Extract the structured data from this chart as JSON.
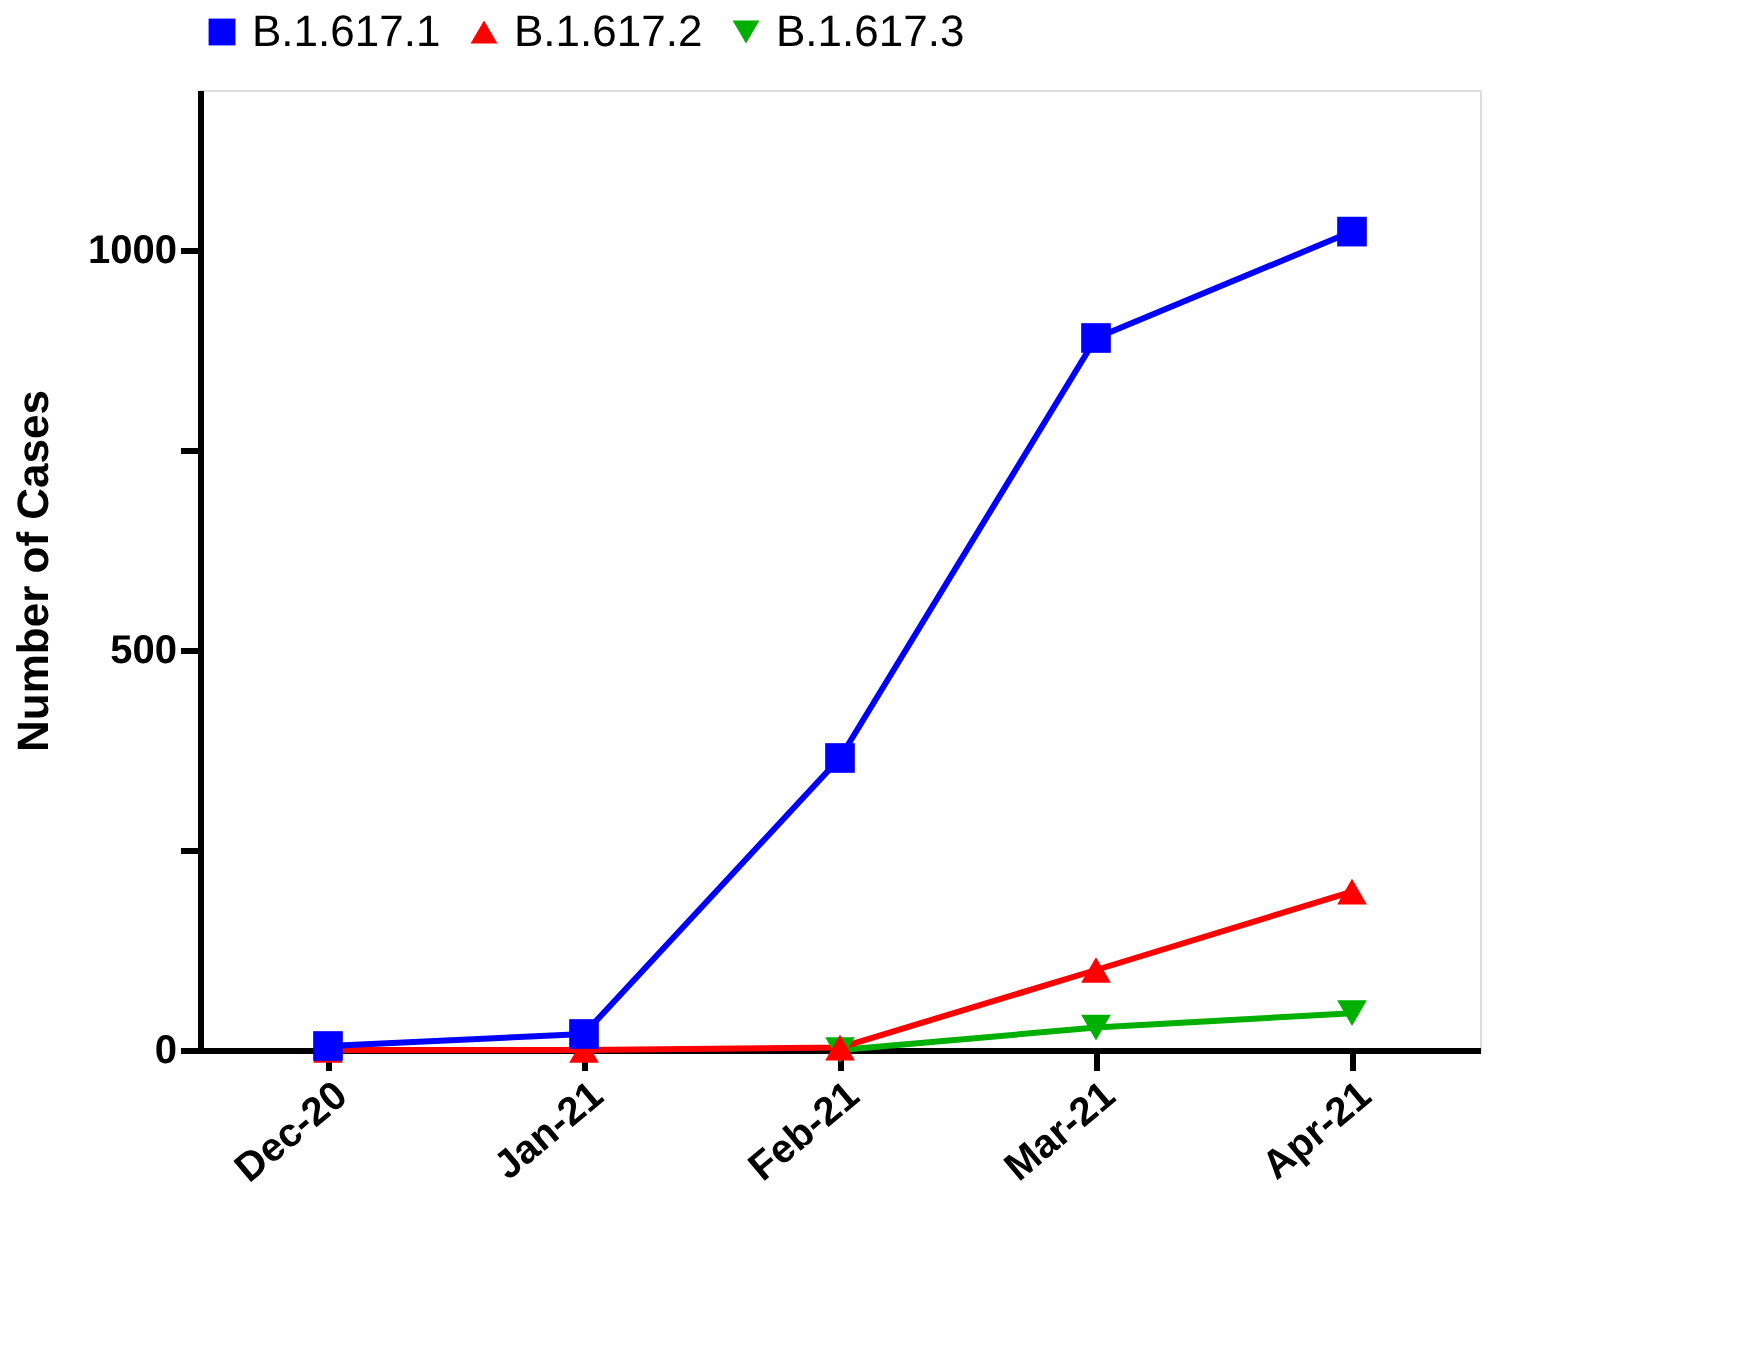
{
  "chart_data": {
    "type": "line",
    "ylabel": "Number of Cases",
    "categories": [
      "Dec-20",
      "Jan-21",
      "Feb-21",
      "Mar-21",
      "Apr-21"
    ],
    "series": [
      {
        "name": "B.1.617.1",
        "color": "#0000ff",
        "marker": "square",
        "values": [
          5,
          20,
          365,
          890,
          1023
        ]
      },
      {
        "name": "B.1.617.2",
        "color": "#ff0000",
        "marker": "triangle",
        "values": [
          0,
          0,
          3,
          100,
          198
        ]
      },
      {
        "name": "B.1.617.3",
        "color": "#00b000",
        "marker": "triangle",
        "values": [
          null,
          null,
          0,
          28,
          46
        ]
      }
    ],
    "ylim": [
      0,
      1200
    ],
    "yticks": [
      0,
      {
        "value": 250,
        "label": null
      },
      500,
      {
        "value": 750,
        "label": null
      },
      1000
    ],
    "grid": false,
    "legend": "top",
    "line_style": "solid"
  }
}
